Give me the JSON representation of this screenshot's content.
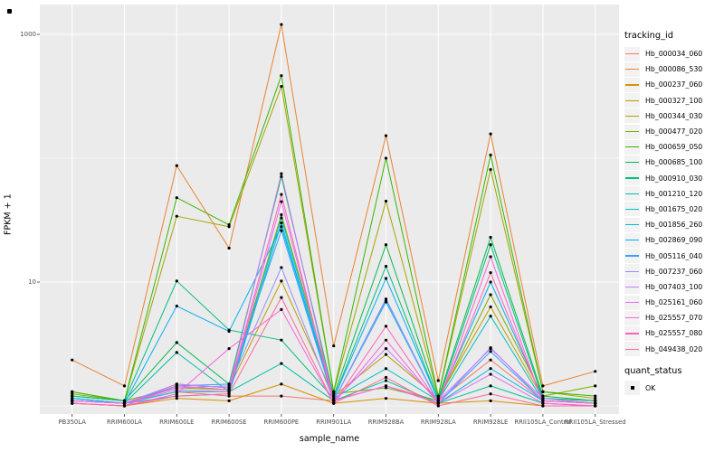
{
  "figure": {
    "background": "#FFFFFF",
    "panel_background": "#EBEBEB",
    "grid_color": "#FFFFFF",
    "axis_tick_color": "#333333",
    "tick_label_color": "#4D4D4D",
    "legend_key_background": "#F2F2F2",
    "point_color": "#000000",
    "corner_mark": "black-square"
  },
  "chart_data": {
    "type": "line",
    "title": "",
    "xlabel": "sample_name",
    "ylabel": "FPKM + 1",
    "y_scale": "log10",
    "grid": "on",
    "legend_position": "right",
    "point_symbol": "small-black-dot",
    "y_ticks": [
      {
        "label": "1000",
        "value": 1000
      },
      {
        "label": "10",
        "value": 10
      }
    ],
    "y_minor_gridlines": [
      100,
      1
    ],
    "ylim": [
      0.9,
      1700
    ],
    "categories": [
      "PB350LA",
      "RRIM600LA",
      "RRIM600LE",
      "RRIM600SE",
      "RRIM600PE",
      "RRIM901LA",
      "RRIM928BA",
      "RRIM928LA",
      "RRIM928LE",
      "RRII105LA_Control",
      "RRII105LA_Stressed"
    ],
    "legend_title": "tracking_id",
    "series": [
      {
        "name": "Hb_000034_060",
        "color": "#F8766D",
        "values": [
          1.1,
          1.05,
          1.3,
          1.2,
          1.2,
          1.1,
          1.45,
          1.1,
          2.35,
          1.1,
          1.05
        ]
      },
      {
        "name": "Hb_000086_530",
        "color": "#EA8331",
        "values": [
          2.35,
          1.45,
          87,
          18.8,
          1200,
          3.05,
          152,
          1.6,
          157,
          1.45,
          1.9
        ]
      },
      {
        "name": "Hb_000237_060",
        "color": "#D89000",
        "values": [
          1.05,
          1.0,
          1.15,
          1.1,
          1.5,
          1.05,
          1.15,
          1.05,
          1.1,
          1.0,
          1.0
        ]
      },
      {
        "name": "Hb_000327_100",
        "color": "#C09B00",
        "values": [
          1.1,
          1.05,
          1.5,
          1.4,
          10.2,
          1.2,
          2.6,
          1.15,
          6.3,
          1.15,
          1.1
        ]
      },
      {
        "name": "Hb_000344_030",
        "color": "#A3A500",
        "values": [
          1.3,
          1.1,
          34,
          28,
          380,
          1.3,
          45,
          1.2,
          81,
          1.3,
          1.15
        ]
      },
      {
        "name": "Hb_000477_020",
        "color": "#7CAE00",
        "values": [
          1.25,
          1.1,
          1.4,
          1.35,
          35,
          1.25,
          1.4,
          1.1,
          7.9,
          1.2,
          1.45
        ]
      },
      {
        "name": "Hb_000659_050",
        "color": "#39B600",
        "values": [
          1.3,
          1.1,
          48,
          29,
          464,
          1.3,
          100,
          1.2,
          106,
          1.3,
          1.2
        ]
      },
      {
        "name": "Hb_000685_100",
        "color": "#00BB4E",
        "values": [
          1.2,
          1.1,
          3.25,
          1.5,
          71,
          1.2,
          20,
          1.15,
          23,
          1.2,
          1.1
        ]
      },
      {
        "name": "Hb_000910_030",
        "color": "#00BF7D",
        "values": [
          1.2,
          1.1,
          10.2,
          4.1,
          3.4,
          1.15,
          13.4,
          1.1,
          20,
          1.15,
          1.1
        ]
      },
      {
        "name": "Hb_001210_120",
        "color": "#00C1A3",
        "values": [
          1.15,
          1.05,
          2.7,
          1.3,
          2.2,
          1.1,
          1.6,
          1.05,
          1.45,
          1.05,
          1.0
        ]
      },
      {
        "name": "Hb_001675_020",
        "color": "#00BFC4",
        "values": [
          1.15,
          1.05,
          1.3,
          1.3,
          33,
          1.15,
          2.0,
          1.1,
          5.3,
          1.1,
          1.05
        ]
      },
      {
        "name": "Hb_001856_260",
        "color": "#00BAE0",
        "values": [
          1.1,
          1.05,
          1.2,
          1.25,
          30,
          1.1,
          6.9,
          1.05,
          2.0,
          1.1,
          1.05
        ]
      },
      {
        "name": "Hb_002869_090",
        "color": "#00B0F6",
        "values": [
          1.15,
          1.05,
          6.4,
          4.0,
          28,
          1.15,
          10.7,
          1.1,
          10.0,
          1.15,
          1.05
        ]
      },
      {
        "name": "Hb_005116_040",
        "color": "#35A2FF",
        "values": [
          1.1,
          1.05,
          1.45,
          1.5,
          26,
          1.1,
          7.3,
          1.05,
          2.75,
          1.1,
          1.05
        ]
      },
      {
        "name": "Hb_007237_060",
        "color": "#9590FF",
        "values": [
          1.1,
          1.05,
          1.4,
          1.45,
          13.1,
          1.1,
          7.1,
          1.05,
          2.95,
          1.1,
          1.05
        ]
      },
      {
        "name": "Hb_007403_100",
        "color": "#C77CFF",
        "values": [
          1.1,
          1.05,
          1.5,
          1.4,
          75,
          1.1,
          2.9,
          1.1,
          2.9,
          1.15,
          1.05
        ]
      },
      {
        "name": "Hb_025161_060",
        "color": "#E76BF3",
        "values": [
          1.1,
          1.05,
          1.35,
          1.3,
          44.6,
          1.1,
          1.45,
          1.05,
          1.8,
          1.05,
          1.0
        ]
      },
      {
        "name": "Hb_025557_070",
        "color": "#FA62DB",
        "values": [
          1.05,
          1.0,
          1.25,
          2.9,
          6.0,
          1.05,
          3.4,
          1.05,
          16,
          1.05,
          1.0
        ]
      },
      {
        "name": "Hb_025557_080",
        "color": "#FF62BC",
        "values": [
          1.05,
          1.0,
          1.45,
          1.35,
          51,
          1.05,
          4.4,
          1.05,
          11.9,
          1.1,
          1.05
        ]
      },
      {
        "name": "Hb_049438_020",
        "color": "#FF6A98",
        "values": [
          1.05,
          1.0,
          1.2,
          1.25,
          7.5,
          1.05,
          1.7,
          1.0,
          1.25,
          1.0,
          1.0
        ]
      }
    ],
    "quant_legend": {
      "title": "quant_status",
      "items": [
        {
          "label": "OK",
          "symbol": "black-square"
        }
      ]
    }
  }
}
